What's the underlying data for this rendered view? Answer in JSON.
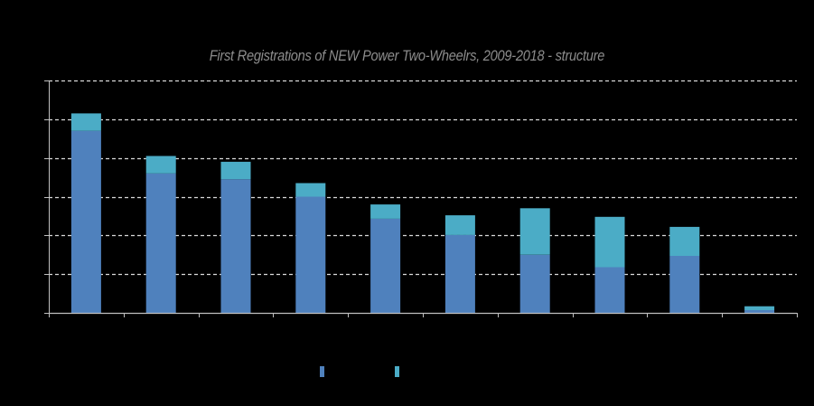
{
  "chart_data": {
    "type": "bar",
    "stacked": true,
    "title": "First Registrations of NEW Power Two-Wheelrs, 2009-2018 - structure",
    "categories": [
      "",
      "",
      "",
      "",
      "",
      "",
      "",
      "",
      "",
      ""
    ],
    "series": [
      {
        "values": [
          4.7,
          3.6,
          3.45,
          3.0,
          2.43,
          2.01,
          1.5,
          1.18,
          1.47,
          0.07
        ],
        "color": "#4F81BD"
      },
      {
        "values": [
          0.45,
          0.45,
          0.45,
          0.35,
          0.37,
          0.51,
          1.2,
          1.3,
          0.75,
          0.1
        ],
        "color": "#4BACC6"
      }
    ],
    "ylim": [
      0,
      6
    ],
    "yticks": [
      0,
      1,
      2,
      3,
      4,
      5,
      6
    ],
    "grid": true,
    "xlabel": "",
    "ylabel": "",
    "legend_position": "bottom-center",
    "colors": {
      "background": "#000000",
      "axis": "#bfbfbf",
      "grid": "#d9d9d9",
      "title": "#8c8c8c"
    }
  }
}
